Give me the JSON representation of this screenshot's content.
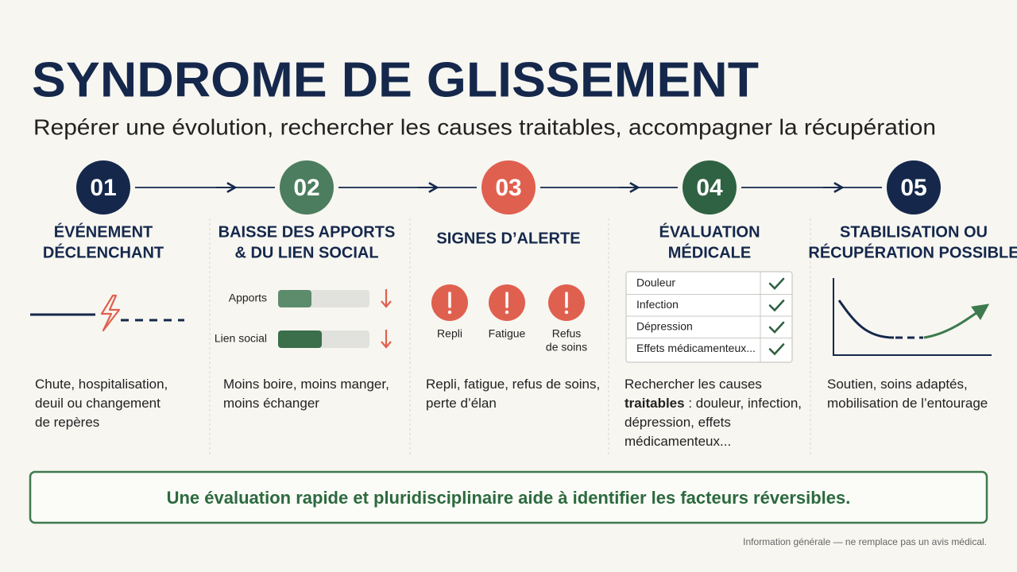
{
  "header": {
    "title": "SYNDROME DE GLISSEMENT",
    "subtitle": "Repérer une évolution, rechercher les causes traitables, accompagner la récupération"
  },
  "steps": [
    {
      "number": "01",
      "color": "#15284c",
      "title_lines": [
        "ÉVÉNEMENT",
        "DÉCLENCHANT"
      ],
      "description_lines": [
        [
          "Chute, hospitalisation,"
        ],
        [
          "deuil ou changement"
        ],
        [
          "de repères"
        ]
      ]
    },
    {
      "number": "02",
      "color": "#4c7d5e",
      "title_lines": [
        "BAISSE DES APPORTS",
        "& DU LIEN SOCIAL"
      ],
      "indicators": [
        "Apports",
        "Lien social"
      ],
      "description_lines": [
        [
          "Moins boire, moins manger,"
        ],
        [
          "moins échanger"
        ]
      ]
    },
    {
      "number": "03",
      "color": "#e0604f",
      "title_lines": [
        "SIGNES D’ALERTE"
      ],
      "signs": [
        [
          "Repli"
        ],
        [
          "Fatigue"
        ],
        [
          "Refus",
          "de soins"
        ]
      ],
      "description_lines": [
        [
          "Repli, fatigue, refus de soins,"
        ],
        [
          "perte d’élan"
        ]
      ]
    },
    {
      "number": "04",
      "color": "#2f6242",
      "title_lines": [
        "ÉVALUATION",
        "MÉDICALE"
      ],
      "checklist": [
        "Douleur",
        "Infection",
        "Dépression",
        "Effets médicamenteux..."
      ],
      "description_lines": [
        [
          "Rechercher les causes"
        ],
        [
          {
            "text": "traitables",
            "bold": true
          },
          " : douleur, infection,"
        ],
        [
          "dépression, effets"
        ],
        [
          "médicamenteux..."
        ]
      ]
    },
    {
      "number": "05",
      "color": "#15284c",
      "title_lines": [
        "STABILISATION OU",
        "RÉCUPÉRATION POSSIBLE"
      ],
      "description_lines": [
        [
          "Soutien, soins adaptés,"
        ],
        [
          "mobilisation de l’entourage"
        ]
      ]
    }
  ],
  "banner": "Une évaluation rapide et pluridisciplinaire aide à identifier les facteurs réversibles.",
  "disclaimer": "Information générale — ne remplace pas un avis médical."
}
